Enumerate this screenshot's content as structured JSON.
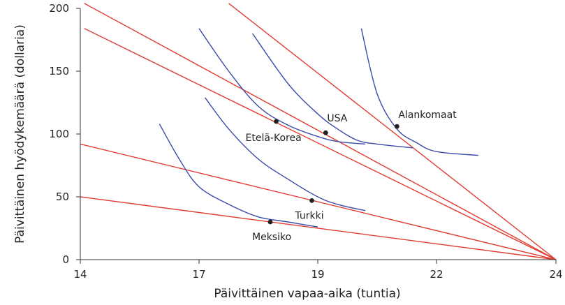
{
  "chart_data": {
    "type": "line",
    "title": "",
    "xlabel": "Päivittäinen vapaa-aika (tuntia)",
    "ylabel": "Päivittäinen hyödykemäärä (dollaria)",
    "xlim": [
      14,
      24
    ],
    "ylim": [
      0,
      200
    ],
    "x_ticks": [
      14,
      17,
      19,
      22,
      24
    ],
    "y_ticks": [
      0,
      50,
      100,
      150,
      200
    ],
    "grid": false,
    "legend": "none",
    "colors": {
      "budget": "#e03c31",
      "indifference": "#3a4aa8",
      "axis": "#333333",
      "point": "#222222"
    },
    "budget_lines": [
      {
        "x": [
          14,
          24
        ],
        "y": [
          50,
          0
        ]
      },
      {
        "x": [
          14,
          24
        ],
        "y": [
          92,
          0
        ]
      },
      {
        "x": [
          14.1,
          24
        ],
        "y": [
          184,
          0
        ]
      },
      {
        "x": [
          14.1,
          24
        ],
        "y": [
          204,
          0
        ]
      },
      {
        "x": [
          17.5,
          24
        ],
        "y": [
          204,
          0
        ]
      }
    ],
    "indifference_curves": [
      {
        "x": [
          16.0,
          16.5,
          17.0,
          17.5,
          18.0,
          18.5,
          19.0
        ],
        "y": [
          108,
          80,
          58,
          44,
          34,
          30,
          26
        ]
      },
      {
        "x": [
          17.1,
          17.5,
          18.0,
          18.5,
          19.0,
          19.5,
          20.2
        ],
        "y": [
          129,
          104,
          80,
          64,
          50,
          44,
          39
        ]
      },
      {
        "x": [
          17.0,
          17.5,
          18.0,
          18.5,
          19.0,
          19.5,
          20.2
        ],
        "y": [
          184,
          150,
          122,
          107,
          98,
          94,
          92
        ]
      },
      {
        "x": [
          17.9,
          18.5,
          19.0,
          19.5,
          20.0,
          20.5,
          21.4
        ],
        "y": [
          180,
          140,
          116,
          104,
          95,
          92,
          89
        ]
      },
      {
        "x": [
          20.1,
          20.5,
          21.0,
          21.5,
          22.0,
          22.7
        ],
        "y": [
          184,
          132,
          104,
          93,
          86,
          83
        ]
      }
    ],
    "points": [
      {
        "label": "Meksiko",
        "x": 18.2,
        "y": 30
      },
      {
        "label": "Turkki",
        "x": 18.9,
        "y": 47
      },
      {
        "label": "Etelä-Korea",
        "x": 18.3,
        "y": 110
      },
      {
        "label": "USA",
        "x": 19.2,
        "y": 101
      },
      {
        "label": "Alankomaat",
        "x": 21.0,
        "y": 106
      }
    ]
  }
}
